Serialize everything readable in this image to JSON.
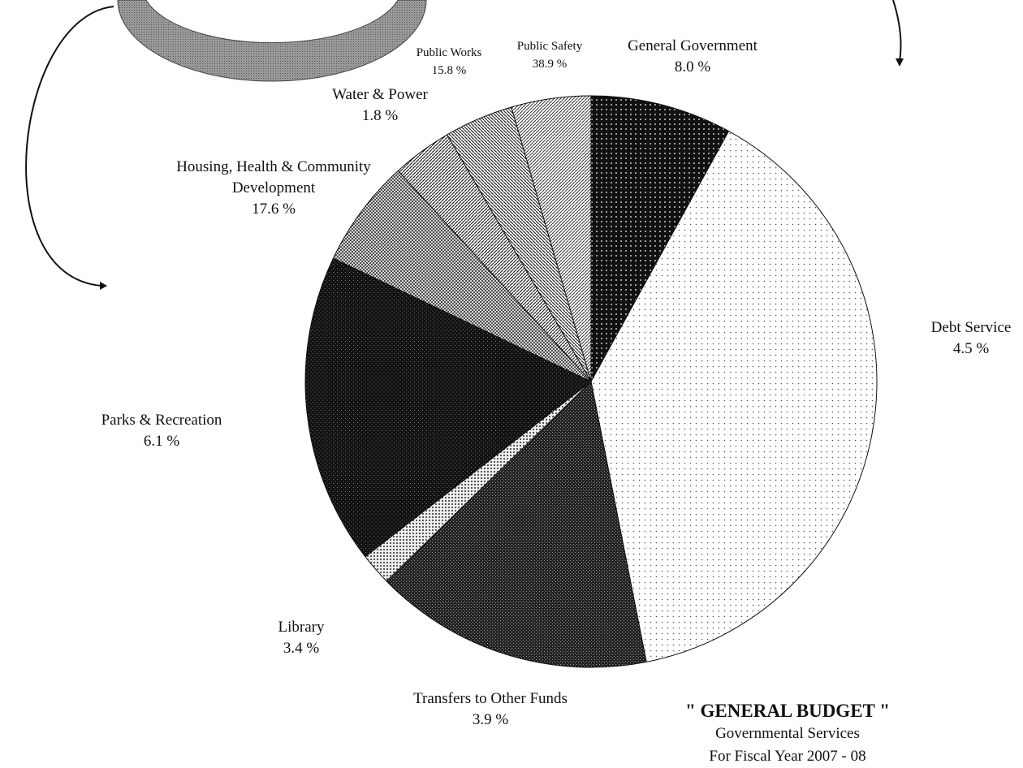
{
  "chart_data": {
    "type": "pie",
    "title": "\" GENERAL BUDGET \"",
    "subtitle": [
      "Governmental Services",
      "For Fiscal Year 2007 - 08"
    ],
    "categories": [
      "General Government",
      "Public Safety",
      "Public Works",
      "Water & Power",
      "Housing, Health & Community Development",
      "Parks & Recreation",
      "Library",
      "Transfers to Other Funds",
      "Debt Service"
    ],
    "values": [
      8.0,
      38.9,
      15.8,
      1.8,
      17.6,
      6.1,
      3.4,
      3.9,
      4.5
    ],
    "value_labels": [
      "8.0 %",
      "38.9 %",
      "15.8 %",
      "1.8 %",
      "17.6 %",
      "6.1 %",
      "3.4 %",
      "3.9 %",
      "4.5 %"
    ]
  }
}
